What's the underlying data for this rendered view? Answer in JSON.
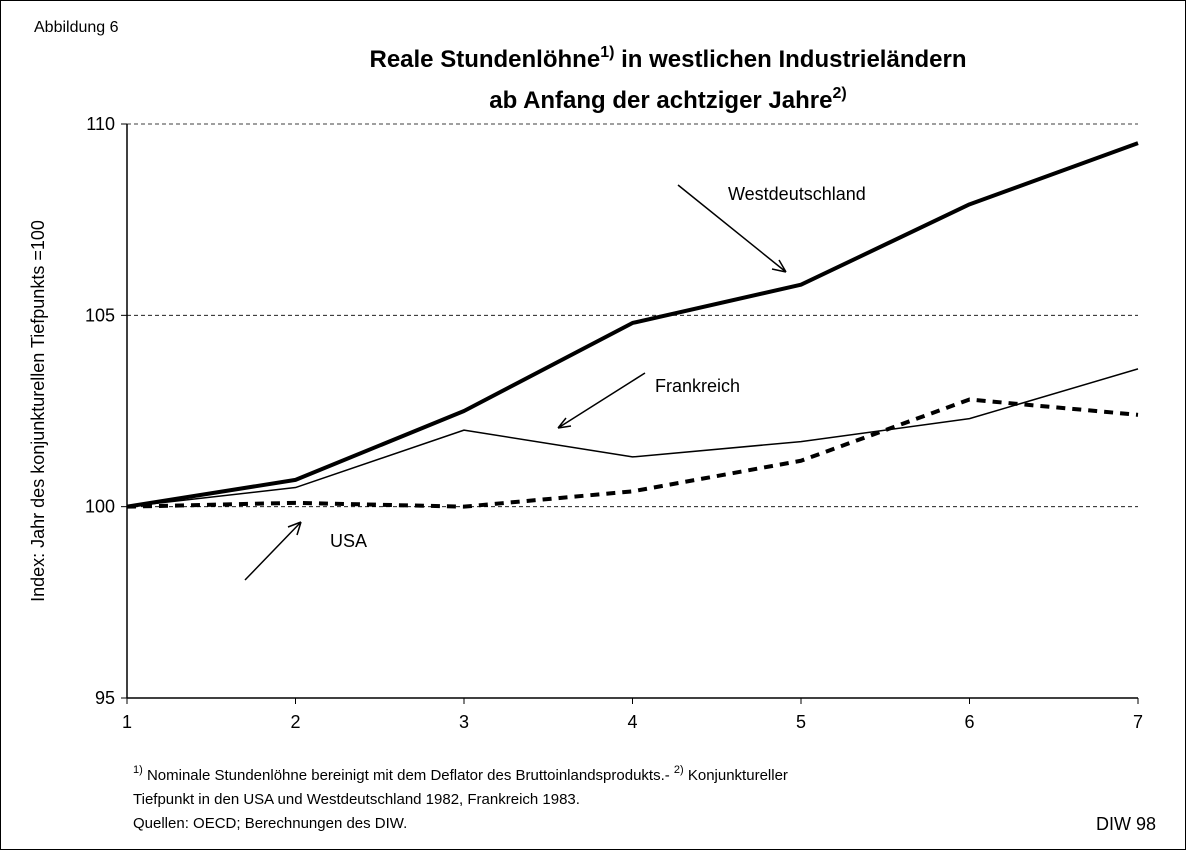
{
  "chart_data": {
    "type": "line",
    "figure_label": "Abbildung 6",
    "title": [
      "Reale Stundenlöhne",
      "1)",
      " in westlichen Industrieländern"
    ],
    "subtitle": [
      "ab Anfang der achtziger Jahre",
      "2)"
    ],
    "y_label": "Index: Jahr des konjunkturellen Tiefpunkts =100",
    "x": [
      1,
      2,
      3,
      4,
      5,
      6,
      7
    ],
    "xlim": [
      1,
      7
    ],
    "xticks": [
      1,
      2,
      3,
      4,
      5,
      6,
      7
    ],
    "ylim": [
      95,
      110
    ],
    "yticks": [
      95,
      100,
      105,
      110
    ],
    "grid": true,
    "series": [
      {
        "name": "Westdeutschland",
        "color": "#000000",
        "width": 4,
        "dashed": false,
        "values": [
          100,
          100.7,
          102.5,
          104.8,
          105.8,
          107.9,
          109.5
        ]
      },
      {
        "name": "Frankreich",
        "color": "#000000",
        "width": 1.5,
        "dashed": false,
        "values": [
          100,
          100.5,
          102,
          101.3,
          101.7,
          102.3,
          103.6
        ]
      },
      {
        "name": "USA",
        "color": "#000000",
        "width": 4,
        "dashed": true,
        "values": [
          100,
          100.1,
          100,
          100.4,
          101.2,
          102.8,
          102.4
        ]
      }
    ],
    "footnotes": [
      [
        "1)",
        " Nominale Stundenlöhne bereinigt mit dem Deflator des Bruttoinlandsprodukts.- ",
        "2)",
        " Konjunktureller"
      ],
      [
        "Tiefpunkt in den USA und Westdeutschland 1982, Frankreich 1983."
      ],
      [
        "Quellen:  OECD; Berechnungen des DIW."
      ]
    ],
    "source": "DIW 98"
  }
}
